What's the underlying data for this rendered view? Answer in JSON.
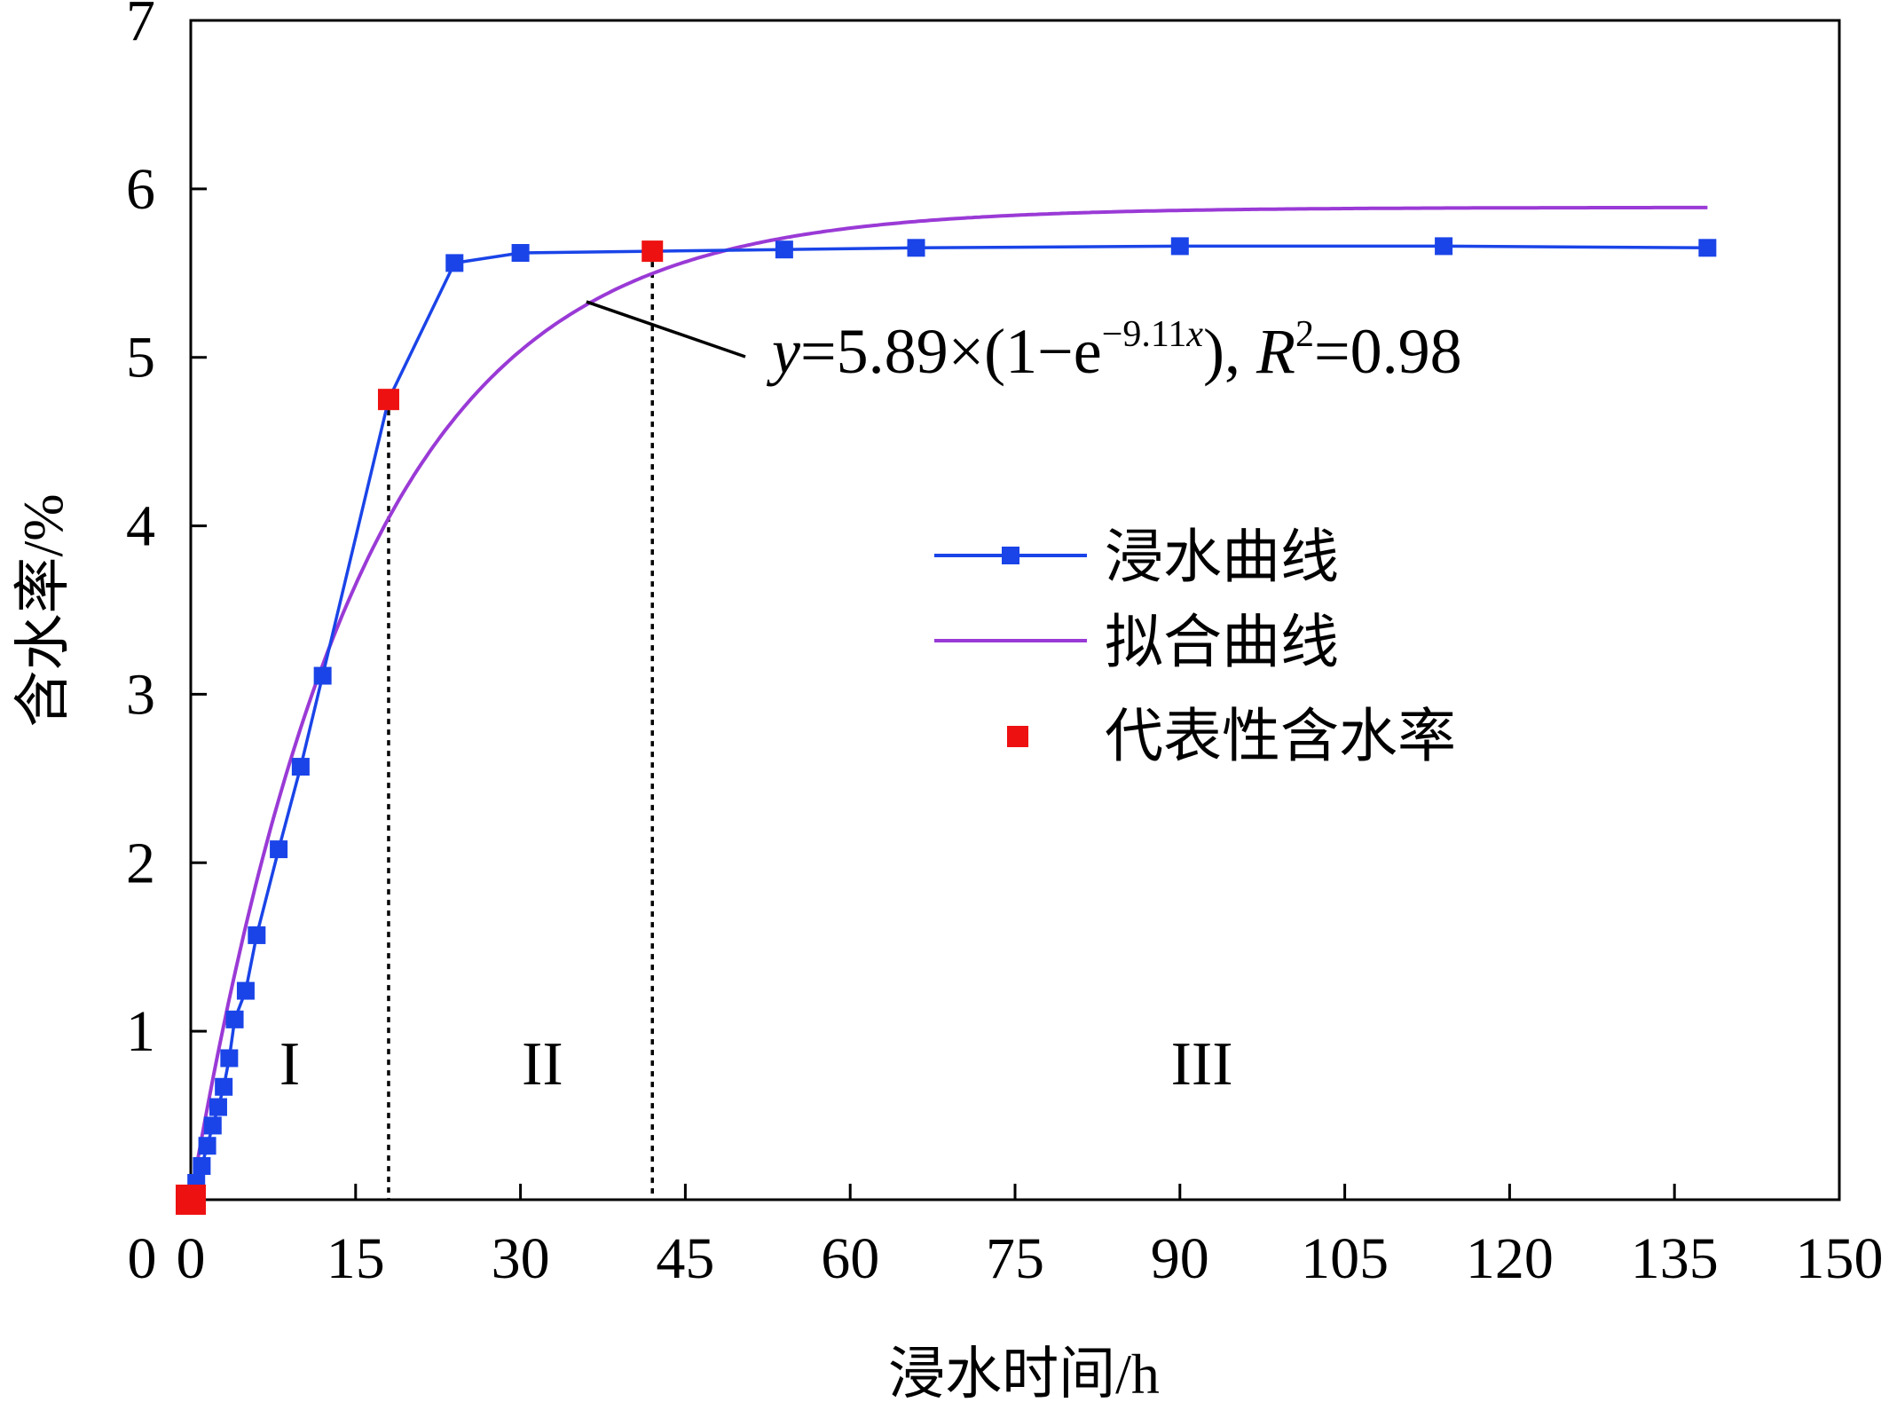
{
  "chart_data": {
    "type": "line",
    "xlabel": "浸水时间/h",
    "ylabel": "含水率/%",
    "xlim": [
      0,
      150
    ],
    "ylim": [
      0,
      7
    ],
    "x_ticks": [
      0,
      15,
      30,
      45,
      60,
      75,
      90,
      105,
      120,
      135,
      150
    ],
    "y_ticks": [
      1,
      2,
      3,
      4,
      5,
      6,
      7
    ],
    "y_tick_zero_label": "0",
    "grid": false,
    "legend_position": "center-right",
    "series": [
      {
        "name": "浸水曲线",
        "kind": "line-marker",
        "color": "#1a44e8",
        "x": [
          0,
          0.5,
          1,
          1.5,
          2,
          2.5,
          3,
          3.5,
          4,
          5,
          6,
          8,
          10,
          12,
          18,
          24,
          30,
          42,
          54,
          66,
          90,
          114,
          138
        ],
        "y": [
          0,
          0.1,
          0.2,
          0.32,
          0.44,
          0.55,
          0.67,
          0.84,
          1.07,
          1.24,
          1.57,
          2.08,
          2.57,
          3.11,
          4.75,
          5.56,
          5.62,
          5.63,
          5.64,
          5.65,
          5.66,
          5.66,
          5.65
        ]
      },
      {
        "name": "拟合曲线",
        "kind": "fit",
        "color": "#9a3ad6",
        "formula": {
          "a": 5.89,
          "b": 9.11
        },
        "x_range": [
          0,
          138
        ]
      },
      {
        "name": "代表性含水率",
        "kind": "points",
        "color": "#ee1111",
        "x": [
          0,
          18,
          42
        ],
        "y": [
          0,
          4.75,
          5.63
        ]
      }
    ],
    "reference_lines_x": [
      18,
      42
    ],
    "stage_labels": [
      {
        "text": "I",
        "x": 9,
        "y": 0.8
      },
      {
        "text": "II",
        "x": 32,
        "y": 0.8
      },
      {
        "text": "III",
        "x": 92,
        "y": 0.8
      }
    ],
    "annotation": {
      "y_var": "y",
      "text_1": "=5.89×(1−e",
      "exponent": "−9.11",
      "exponent_var": "x",
      "text_2": "), ",
      "r_var": "R",
      "r_sup": "2",
      "text_3": "=0.98",
      "pointer_x": 36,
      "pointer_y": 5.33
    }
  }
}
